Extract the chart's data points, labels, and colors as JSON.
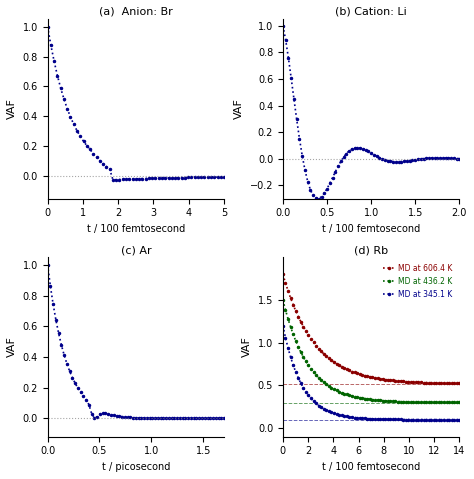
{
  "title_a": "(a)  Anion: Br",
  "title_b": "(b) Cation: Li",
  "title_c": "(c) Ar",
  "title_d": "(d) Rb",
  "xlabel_a": "t / 100 femtosecond",
  "xlabel_b": "t / 100 femtosecond",
  "xlabel_c": "t / picosecond",
  "xlabel_d": "t / 100 femtosecond",
  "ylabel": "VAF",
  "dot_color": "#00008B",
  "legend_d": [
    "MD at 606.4 K",
    "MD at 436.2 K",
    "MD at 345.1 K"
  ],
  "legend_colors_d": [
    "#8B0000",
    "#006400",
    "#00008B"
  ],
  "plateau_d": [
    0.52,
    0.3,
    0.1
  ],
  "bg_color": "#ffffff"
}
